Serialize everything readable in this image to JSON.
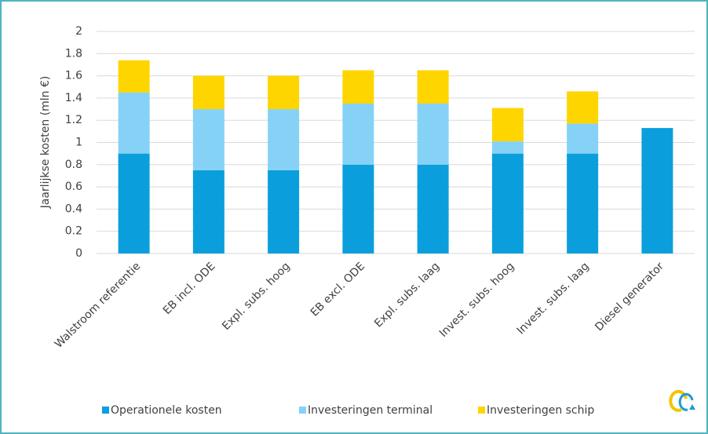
{
  "chart_data": {
    "type": "stacked_bar",
    "y_label": "Jaarlijkse kosten (mln €)",
    "categories": [
      "Walstroom referentie",
      "EB incl. ODE",
      "Expl. subs. hoog",
      "EB excl. ODE",
      "Expl. subs. laag",
      "Invest. subs. hoog",
      "Invest. subs. laag",
      "Diesel generator"
    ],
    "series": [
      {
        "name": "Operationele kosten",
        "color": "#0a9fdc",
        "values": [
          0.9,
          0.75,
          0.75,
          0.8,
          0.8,
          0.9,
          0.9,
          1.13
        ]
      },
      {
        "name": "Investeringen terminal",
        "color": "#85d2f6",
        "values": [
          0.55,
          0.55,
          0.55,
          0.55,
          0.55,
          0.11,
          0.27,
          0
        ]
      },
      {
        "name": "Investeringen schip",
        "color": "#ffd500",
        "values": [
          0.29,
          0.3,
          0.3,
          0.3,
          0.3,
          0.3,
          0.29,
          0
        ]
      }
    ],
    "ylim": [
      0,
      2
    ],
    "yticks": [
      0,
      0.2,
      0.4,
      0.6,
      0.8,
      1,
      1.2,
      1.4,
      1.6,
      1.8,
      2
    ],
    "grid": true,
    "legend": "bottom"
  }
}
